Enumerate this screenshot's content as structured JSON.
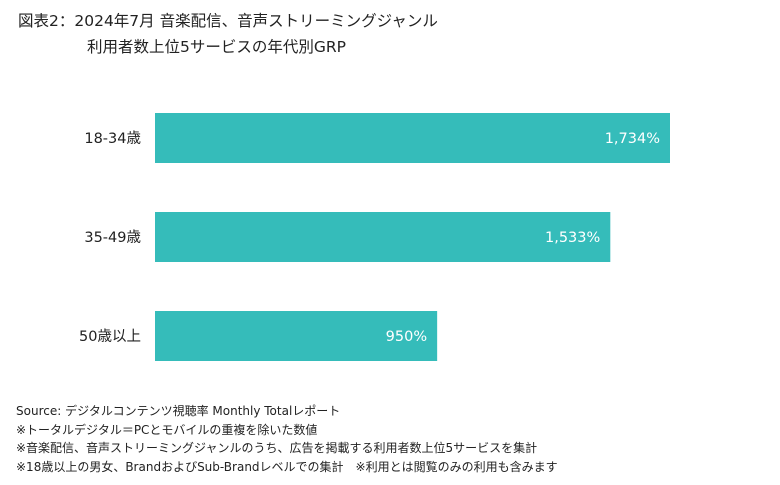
{
  "title": {
    "line1": "図表2：2024年7月 音楽配信、音声ストリーミングジャンル",
    "line2": "利用者数上位5サービスの年代別GRP"
  },
  "chart_data": {
    "type": "bar",
    "orientation": "horizontal",
    "categories": [
      "18-34歳",
      "35-49歳",
      "50歳以上"
    ],
    "values": [
      1734,
      1533,
      950
    ],
    "value_labels": [
      "1,734%",
      "1,533%",
      "950%"
    ],
    "unit": "%",
    "xlabel": "",
    "ylabel": "",
    "xlim": [
      0,
      1734
    ],
    "grid": false,
    "legend": "none",
    "bar_color": "#35bcba",
    "label_color": "#ffffff"
  },
  "notes": [
    "Source: デジタルコンテンツ視聴率 Monthly Totalレポート",
    "※トータルデジタル＝PCとモバイルの重複を除いた数値",
    "※音楽配信、音声ストリーミングジャンルのうち、広告を掲載する利用者数上位5サービスを集計",
    "※18歳以上の男女、BrandおよびSub-Brandレベルでの集計　※利用とは閲覧のみの利用も含みます"
  ]
}
